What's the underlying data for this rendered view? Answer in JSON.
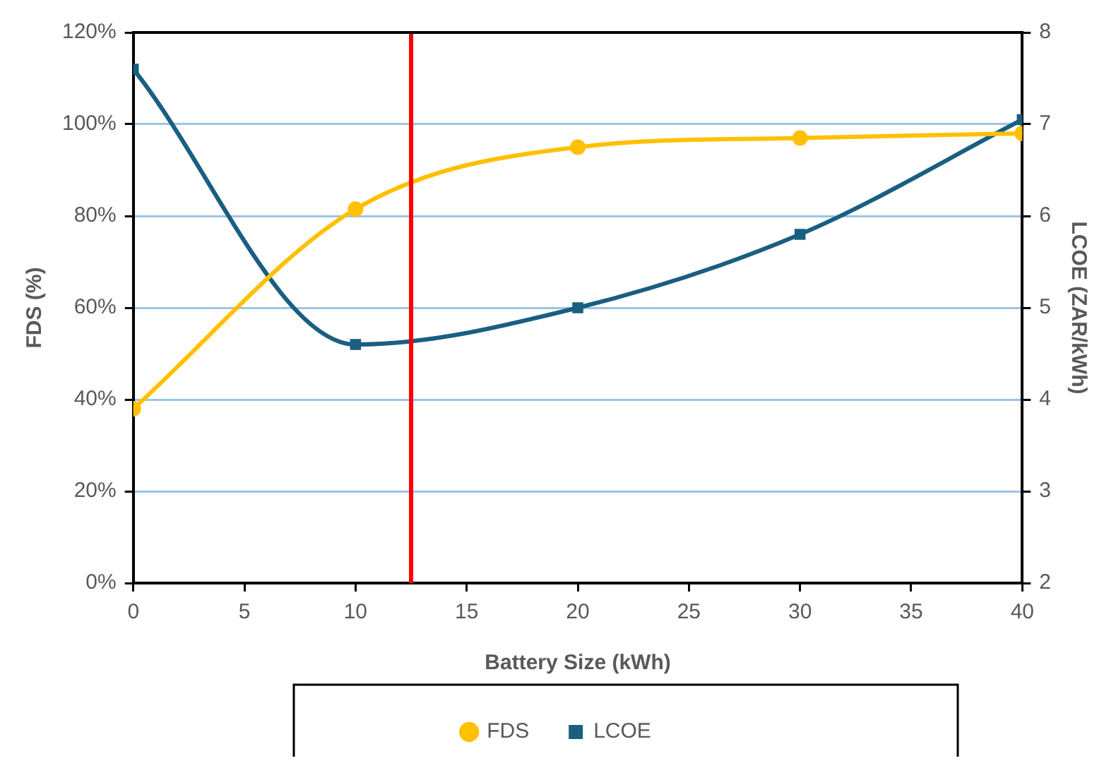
{
  "chart_data": {
    "type": "line",
    "xlabel": "Battery Size (kWh)",
    "ylabel": "FDS (%)",
    "y2label": "LCOE (ZAR/kWh)",
    "x": [
      0,
      10,
      20,
      30,
      40
    ],
    "series": [
      {
        "name": "FDS",
        "color": "#ffc000",
        "values": [
          38,
          81.5,
          95,
          97,
          98
        ],
        "marker": "circle"
      },
      {
        "name": "LCOE",
        "color": "#1a5e80",
        "values": [
          7.6,
          4.6,
          5.0,
          5.8,
          7.05
        ],
        "axis": "y2",
        "marker": "square"
      }
    ],
    "xlim": [
      0,
      40
    ],
    "xticks": [
      0,
      5,
      10,
      15,
      20,
      25,
      30,
      35,
      40
    ],
    "ylim": [
      0,
      120
    ],
    "yticks": [
      {
        "value": 0,
        "label": "0%"
      },
      {
        "value": 20,
        "label": "20%"
      },
      {
        "value": 40,
        "label": "40%"
      },
      {
        "value": 60,
        "label": "60%"
      },
      {
        "value": 80,
        "label": "80%"
      },
      {
        "value": 100,
        "label": "100%"
      },
      {
        "value": 120,
        "label": "120%"
      }
    ],
    "y2lim": [
      2,
      8
    ],
    "y2ticks": [
      2,
      3,
      4,
      5,
      6,
      7,
      8
    ],
    "ref_lines": [
      {
        "axis": "x",
        "value": 12.5,
        "color": "#ff0000"
      }
    ],
    "grid": "y",
    "legend": "bottom"
  }
}
